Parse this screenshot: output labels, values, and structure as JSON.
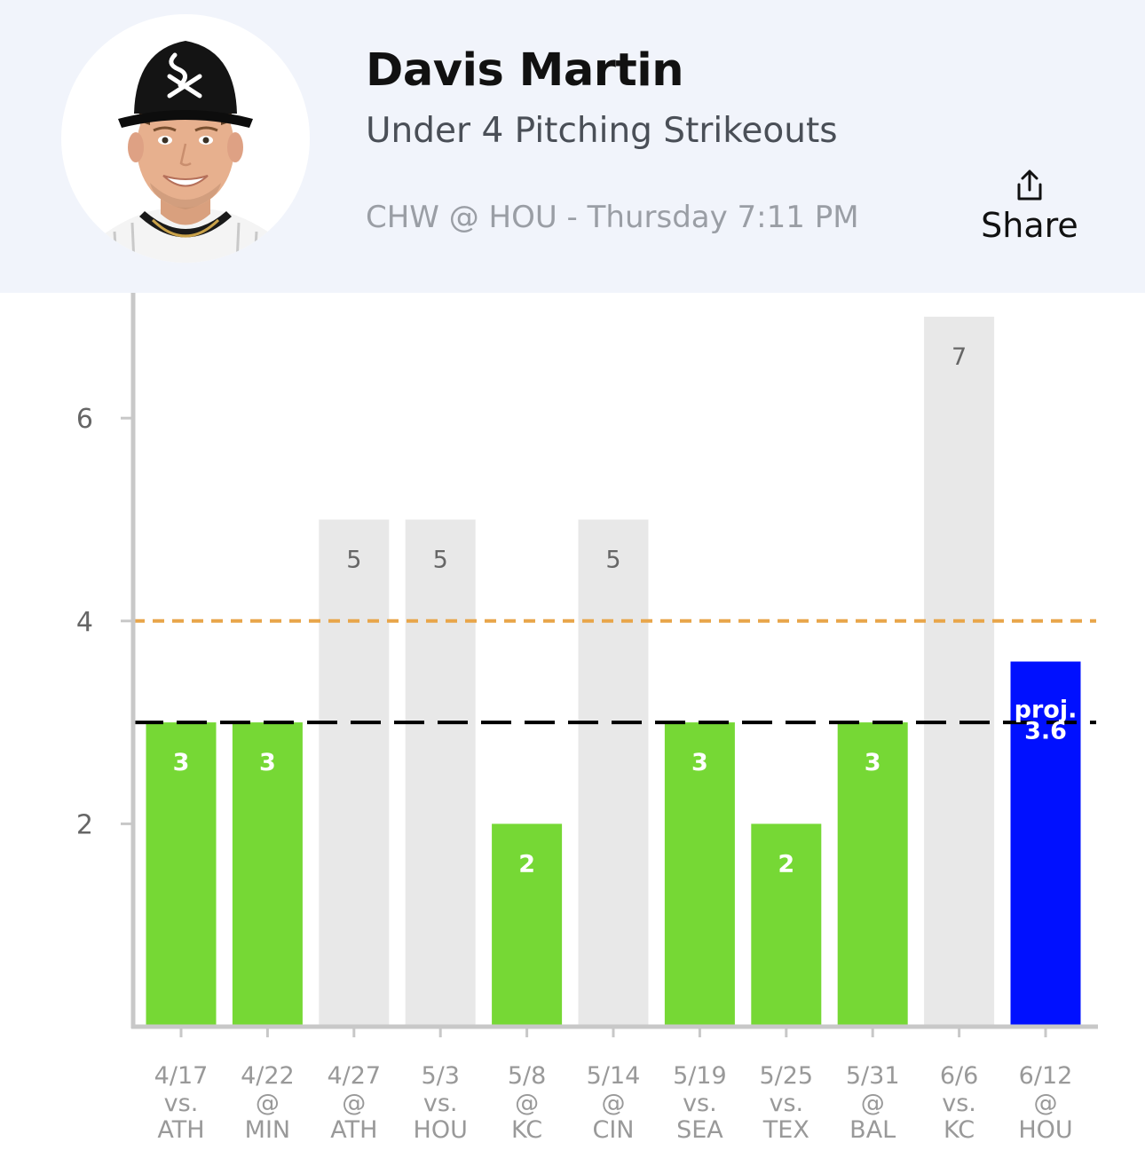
{
  "header": {
    "player_name": "Davis Martin",
    "prop_line": "Under 4 Pitching Strikeouts",
    "matchup": "CHW @ HOU - Thursday 7:11 PM",
    "share_label": "Share"
  },
  "colors": {
    "header_bg": "#f1f4fb",
    "under_bar": "#76d835",
    "over_bar": "#e8e8e8",
    "projection_bar": "#0010ff",
    "line_dashed": "#e8a54a",
    "average_dashed": "#000000"
  },
  "chart_data": {
    "type": "bar",
    "categories": [
      {
        "date": "4/17",
        "loc": "vs.",
        "opp": "ATH"
      },
      {
        "date": "4/22",
        "loc": "@",
        "opp": "MIN"
      },
      {
        "date": "4/27",
        "loc": "@",
        "opp": "ATH"
      },
      {
        "date": "5/3",
        "loc": "vs.",
        "opp": "HOU"
      },
      {
        "date": "5/8",
        "loc": "@",
        "opp": "KC"
      },
      {
        "date": "5/14",
        "loc": "@",
        "opp": "CIN"
      },
      {
        "date": "5/19",
        "loc": "vs.",
        "opp": "SEA"
      },
      {
        "date": "5/25",
        "loc": "vs.",
        "opp": "TEX"
      },
      {
        "date": "5/31",
        "loc": "@",
        "opp": "BAL"
      },
      {
        "date": "6/6",
        "loc": "vs.",
        "opp": "KC"
      },
      {
        "date": "6/12",
        "loc": "@",
        "opp": "HOU"
      }
    ],
    "values": [
      3,
      3,
      5,
      5,
      2,
      5,
      3,
      2,
      3,
      7,
      3.6
    ],
    "labels": [
      "3",
      "3",
      "5",
      "5",
      "2",
      "5",
      "3",
      "2",
      "3",
      "7",
      "3.6"
    ],
    "projection_prefix": "proj.",
    "statuses": [
      "under",
      "under",
      "over",
      "over",
      "under",
      "over",
      "under",
      "under",
      "under",
      "over",
      "projection"
    ],
    "prop_line_value": 4,
    "average_line_value": 3,
    "y_ticks": [
      "2",
      "4",
      "6"
    ],
    "ylim": [
      0,
      7.2
    ],
    "title": "",
    "xlabel": "",
    "ylabel": ""
  }
}
